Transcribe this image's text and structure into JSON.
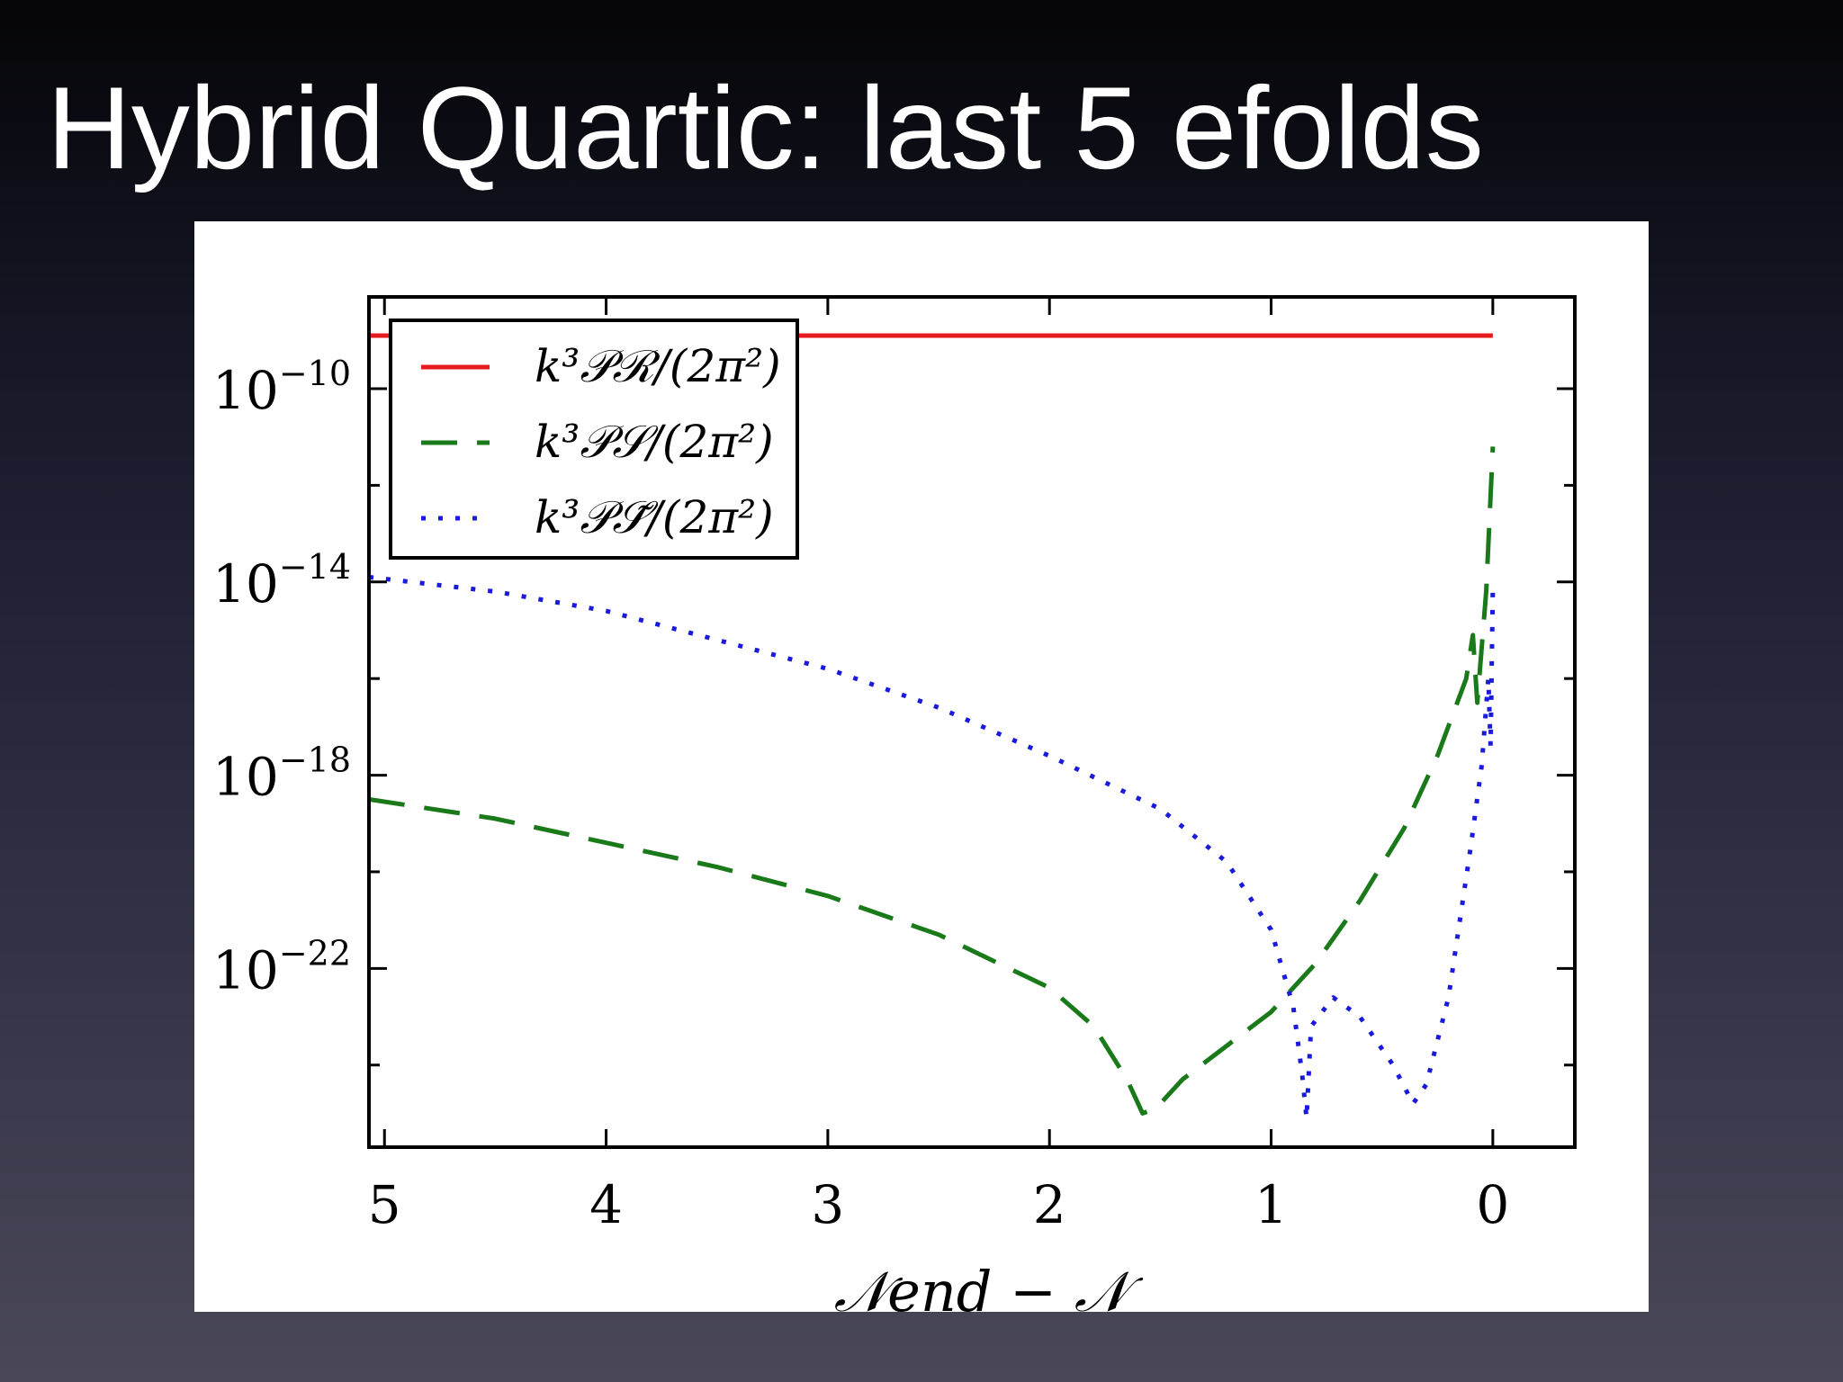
{
  "slide": {
    "title": "Hybrid Quartic: last 5 efolds"
  },
  "chart_data": {
    "type": "line",
    "xlabel": "𝒩end − 𝒩",
    "ylabel": "",
    "x_reversed": true,
    "xlim": [
      5.07,
      -0.37
    ],
    "y_log": true,
    "ylim_exponent": [
      -25.7,
      -8.1
    ],
    "xticks": [
      {
        "value": 5,
        "label": "5"
      },
      {
        "value": 4,
        "label": "4"
      },
      {
        "value": 3,
        "label": "3"
      },
      {
        "value": 2,
        "label": "2"
      },
      {
        "value": 1,
        "label": "1"
      },
      {
        "value": 0,
        "label": "0"
      }
    ],
    "yticks": [
      {
        "exponent": -10,
        "base": "10",
        "sup": "−10"
      },
      {
        "exponent": -14,
        "base": "10",
        "sup": "−14"
      },
      {
        "exponent": -18,
        "base": "10",
        "sup": "−18"
      },
      {
        "exponent": -22,
        "base": "10",
        "sup": "−22"
      }
    ],
    "minor_y_exponents": [
      -12,
      -16,
      -20,
      -24
    ],
    "legend_position": "top-left",
    "grid": false,
    "series": [
      {
        "name": "k³𝒫ℛ/(2π²)",
        "color": "#e41a1c",
        "style": "solid",
        "points": [
          [
            5.07,
            -8.9
          ],
          [
            0,
            -8.9
          ]
        ]
      },
      {
        "name": "k³𝒫𝒮/(2π²)",
        "color": "#1a7a1a",
        "style": "dashed",
        "points": [
          [
            5.07,
            -18.5
          ],
          [
            4.5,
            -18.9
          ],
          [
            4.0,
            -19.4
          ],
          [
            3.5,
            -19.9
          ],
          [
            3.0,
            -20.5
          ],
          [
            2.5,
            -21.3
          ],
          [
            2.0,
            -22.4
          ],
          [
            1.8,
            -23.2
          ],
          [
            1.65,
            -24.3
          ],
          [
            1.58,
            -25.0
          ],
          [
            1.52,
            -24.9
          ],
          [
            1.4,
            -24.3
          ],
          [
            1.2,
            -23.6
          ],
          [
            1.0,
            -22.9
          ],
          [
            0.8,
            -21.9
          ],
          [
            0.6,
            -20.6
          ],
          [
            0.4,
            -19.1
          ],
          [
            0.25,
            -17.6
          ],
          [
            0.12,
            -16.0
          ],
          [
            0.09,
            -15.1
          ],
          [
            0.07,
            -16.5
          ],
          [
            0.03,
            -14.2
          ],
          [
            0.0,
            -11.2
          ]
        ]
      },
      {
        "name": "k³𝒫𝒮̃/(2π²)",
        "color": "#1a1adc",
        "style": "dotted",
        "points": [
          [
            5.07,
            -13.9
          ],
          [
            4.5,
            -14.2
          ],
          [
            4.0,
            -14.6
          ],
          [
            3.5,
            -15.2
          ],
          [
            3.0,
            -15.8
          ],
          [
            2.5,
            -16.6
          ],
          [
            2.0,
            -17.6
          ],
          [
            1.5,
            -18.7
          ],
          [
            1.2,
            -19.8
          ],
          [
            1.0,
            -21.2
          ],
          [
            0.9,
            -22.8
          ],
          [
            0.86,
            -24.2
          ],
          [
            0.84,
            -25.1
          ],
          [
            0.82,
            -23.2
          ],
          [
            0.72,
            -22.6
          ],
          [
            0.6,
            -23.0
          ],
          [
            0.45,
            -24.0
          ],
          [
            0.36,
            -24.8
          ],
          [
            0.3,
            -24.4
          ],
          [
            0.2,
            -22.6
          ],
          [
            0.1,
            -19.5
          ],
          [
            0.05,
            -17.8
          ],
          [
            0.02,
            -16.0
          ],
          [
            0.01,
            -17.4
          ],
          [
            0.0,
            -14.1
          ]
        ]
      }
    ]
  }
}
